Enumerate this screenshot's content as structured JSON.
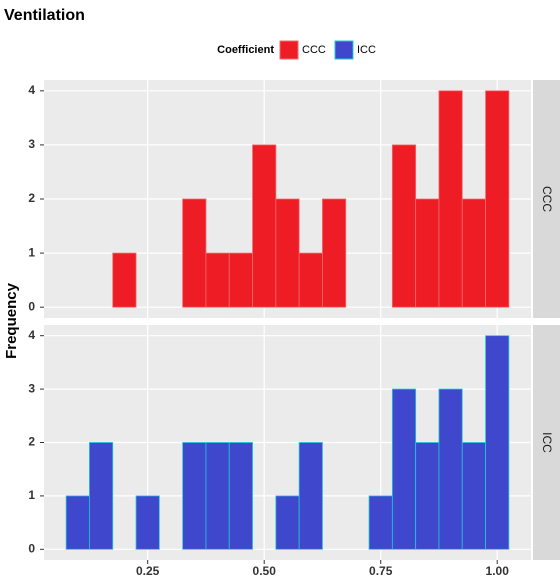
{
  "chart_data": {
    "type": "histogram",
    "title": "Ventilation",
    "y_label": "Frequency",
    "legend_title": "Coefficient",
    "legend_position": "top",
    "bins": [
      0.075,
      0.125,
      0.175,
      0.225,
      0.275,
      0.325,
      0.375,
      0.425,
      0.475,
      0.525,
      0.575,
      0.625,
      0.675,
      0.725,
      0.775,
      0.825,
      0.875,
      0.925,
      0.975,
      1.025
    ],
    "series": [
      {
        "name": "CCC",
        "color": "#ee1c25",
        "edge_color": "#f06a6f",
        "values": [
          0,
          0,
          1,
          0,
          0,
          2,
          1,
          1,
          3,
          2,
          1,
          2,
          0,
          0,
          3,
          2,
          4,
          2,
          4
        ]
      },
      {
        "name": "ICC",
        "color": "#3f48cc",
        "edge_color": "#1fc8d8",
        "values": [
          1,
          2,
          0,
          1,
          0,
          2,
          2,
          2,
          0,
          1,
          2,
          0,
          0,
          1,
          3,
          2,
          3,
          2,
          4
        ]
      }
    ],
    "xlim": [
      0.0275,
      1.0725
    ],
    "xticks": [
      0.25,
      {
        "value": 0.5,
        "label": "0.50"
      },
      0.75,
      {
        "value": 1,
        "label": "1.00"
      }
    ],
    "ylim": [
      -0.2,
      4.2
    ],
    "yticks": [
      0,
      1,
      2,
      3,
      4
    ],
    "grid": true
  }
}
